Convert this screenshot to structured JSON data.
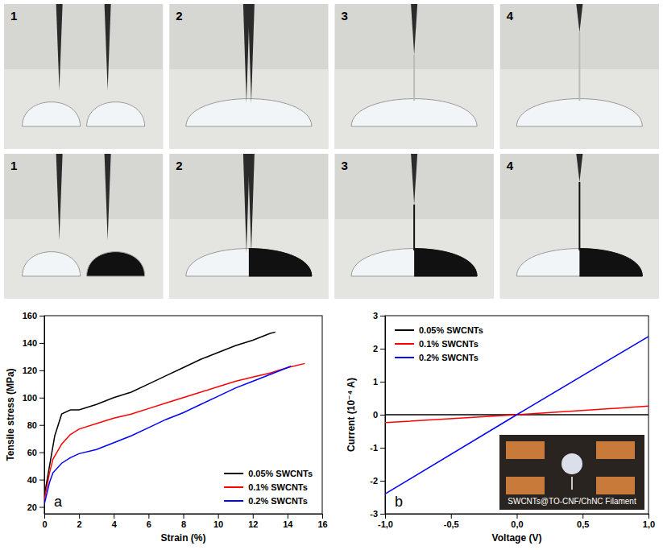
{
  "photos": {
    "rows": [
      {
        "labels": [
          "1",
          "2",
          "3",
          "4"
        ]
      },
      {
        "labels": [
          "1",
          "2",
          "3",
          "4"
        ]
      }
    ]
  },
  "chart_data": [
    {
      "type": "line",
      "panel_label": "a",
      "x_label": "Strain (%)",
      "y_label": "Tensile stress (MPa)",
      "xlim": [
        0,
        16
      ],
      "xticks": [
        0,
        2,
        4,
        6,
        8,
        10,
        12,
        14,
        16
      ],
      "ylim": [
        15,
        160
      ],
      "yticks": [
        20,
        40,
        60,
        80,
        100,
        120,
        140,
        160
      ],
      "grid": false,
      "legend": "lower right",
      "series": [
        {
          "name": "0.05% SWCNTs",
          "color": "#000000",
          "x": [
            0,
            0.3,
            0.6,
            1,
            1.5,
            2,
            3,
            4,
            5,
            6,
            7,
            8,
            9,
            10,
            11,
            12,
            13,
            13.3
          ],
          "values": [
            28,
            50,
            72,
            88,
            91,
            91,
            95,
            100,
            104,
            110,
            116,
            122,
            128,
            133,
            138,
            142,
            147,
            148
          ]
        },
        {
          "name": "0.1% SWCNTs",
          "color": "#ff0000",
          "x": [
            0,
            0.3,
            0.5,
            1,
            1.5,
            2,
            3,
            4,
            5,
            6,
            7,
            8,
            9,
            10,
            11,
            12,
            13,
            14,
            15
          ],
          "values": [
            25,
            45,
            55,
            66,
            73,
            77,
            81,
            85,
            88,
            92,
            96,
            100,
            104,
            108,
            112,
            115,
            118,
            122,
            125
          ]
        },
        {
          "name": "0.2% SWCNTs",
          "color": "#0000ff",
          "x": [
            0,
            0.3,
            0.5,
            1,
            1.5,
            2,
            3,
            4,
            5,
            6,
            7,
            8,
            9,
            10,
            11,
            12,
            13,
            14,
            14.2
          ],
          "values": [
            22,
            38,
            45,
            52,
            56,
            59,
            62,
            67,
            72,
            78,
            84,
            89,
            95,
            101,
            107,
            112,
            117,
            122,
            123
          ]
        }
      ]
    },
    {
      "type": "line",
      "panel_label": "b",
      "x_label": "Voltage (V)",
      "y_label": "Current (10⁻⁴ A)",
      "annotation": "SWCNTs@TO-CNF/ChNC Filament",
      "xlim": [
        -1,
        1
      ],
      "xticks": [
        {
          "value": -1,
          "label": "-1,0"
        },
        {
          "value": -0.5,
          "label": "-0,5"
        },
        {
          "value": 0,
          "label": "0,0"
        },
        {
          "value": 0.5,
          "label": "0,5"
        },
        {
          "value": 1,
          "label": "1,0"
        }
      ],
      "ylim": [
        -3,
        3
      ],
      "yticks": [
        -3,
        -2,
        -1,
        0,
        1,
        2,
        3
      ],
      "grid": false,
      "legend": "upper left",
      "series": [
        {
          "name": "0.05% SWCNTs",
          "color": "#000000",
          "x": [
            -1,
            0,
            1
          ],
          "values": [
            -0.003,
            0,
            0.003
          ]
        },
        {
          "name": "0.1% SWCNTs",
          "color": "#ff0000",
          "x": [
            -1,
            0,
            1
          ],
          "values": [
            -0.24,
            0,
            0.26
          ]
        },
        {
          "name": "0.2% SWCNTs",
          "color": "#0000ff",
          "x": [
            -1,
            0,
            1
          ],
          "values": [
            -2.4,
            0,
            2.37
          ]
        }
      ]
    }
  ]
}
